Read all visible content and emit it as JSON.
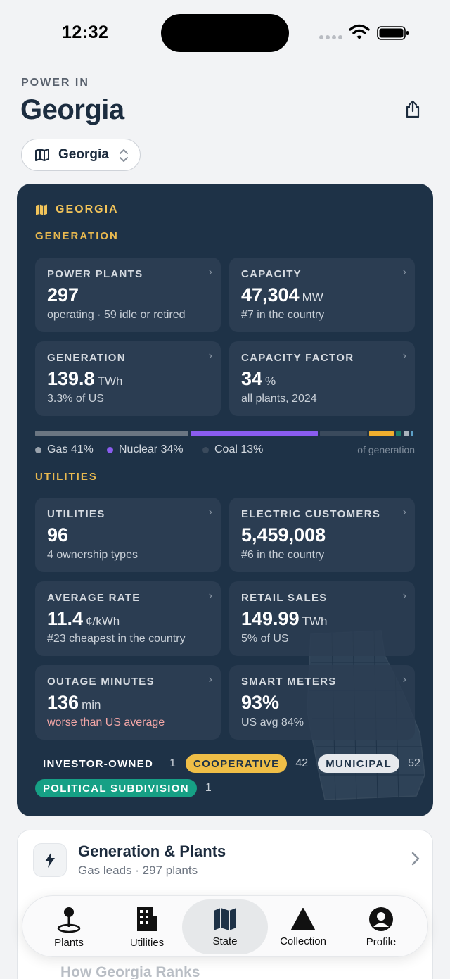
{
  "status_bar": {
    "time": "12:32"
  },
  "header": {
    "eyebrow": "POWER IN",
    "title": "Georgia",
    "picker_value": "Georgia"
  },
  "card": {
    "state_label": "GEORGIA",
    "generation_label": "GENERATION",
    "utilities_label": "UTILITIES",
    "tiles": {
      "power_plants": {
        "label": "POWER PLANTS",
        "value": "297",
        "unit": "",
        "sub": "operating · 59 idle or retired"
      },
      "capacity": {
        "label": "CAPACITY",
        "value": "47,304",
        "unit": "MW",
        "sub": "#7 in the country"
      },
      "generation": {
        "label": "GENERATION",
        "value": "139.8",
        "unit": "TWh",
        "sub": "3.3% of US"
      },
      "capacity_factor": {
        "label": "CAPACITY FACTOR",
        "value": "34",
        "unit": "%",
        "sub": "all plants, 2024"
      },
      "utilities": {
        "label": "UTILITIES",
        "value": "96",
        "unit": "",
        "sub": "4 ownership types"
      },
      "customers": {
        "label": "ELECTRIC CUSTOMERS",
        "value": "5,459,008",
        "unit": "",
        "sub": "#6 in the country"
      },
      "average_rate": {
        "label": "AVERAGE RATE",
        "value": "11.4",
        "unit": "¢/kWh",
        "sub": "#23 cheapest in the country"
      },
      "retail_sales": {
        "label": "RETAIL SALES",
        "value": "149.99",
        "unit": "TWh",
        "sub": "5% of US"
      },
      "outage": {
        "label": "OUTAGE MINUTES",
        "value": "136",
        "unit": "min",
        "sub": "worse than US average"
      },
      "smart_meters": {
        "label": "SMART METERS",
        "value": "93%",
        "unit": "",
        "sub": "US avg 84%"
      }
    },
    "mix": {
      "segments": [
        {
          "name": "Gas",
          "share": 0.41,
          "color": "#6b7682"
        },
        {
          "name": "Nuclear",
          "share": 0.34,
          "color": "#8a5cf0"
        },
        {
          "name": "Coal",
          "share": 0.13,
          "color": "#3a4a5c"
        },
        {
          "name": "Other1",
          "share": 0.07,
          "color": "#efae2e"
        },
        {
          "name": "Other2",
          "share": 0.02,
          "color": "#1c7f6c"
        },
        {
          "name": "Other3",
          "share": 0.02,
          "color": "#a9b3bd"
        },
        {
          "name": "Other4",
          "share": 0.01,
          "color": "#5da0c7"
        }
      ],
      "legend": {
        "gas": "Gas 41%",
        "nuclear": "Nuclear 34%",
        "coal": "Coal 13%",
        "caption": "of generation"
      }
    },
    "ownership": [
      {
        "label": "INVESTOR-OWNED",
        "count": "1"
      },
      {
        "label": "COOPERATIVE",
        "count": "42"
      },
      {
        "label": "MUNICIPAL",
        "count": "52"
      },
      {
        "label": "POLITICAL SUBDIVISION",
        "count": "1"
      }
    ],
    "colors": {
      "accent_gold": "#f2c45a",
      "cooperative": "#efbe47",
      "political": "#16a085",
      "municipal": "#e6e9ed"
    }
  },
  "list": {
    "row1": {
      "title": "Generation & Plants",
      "sub": "Gas leads · 297 plants",
      "icon": "bolt-icon"
    },
    "faded_row": "How Georgia Ranks"
  },
  "tabs": [
    {
      "label": "Plants",
      "icon": "plant-pin-icon"
    },
    {
      "label": "Utilities",
      "icon": "building-icon"
    },
    {
      "label": "State",
      "icon": "map-icon",
      "active": true
    },
    {
      "label": "Collection",
      "icon": "triangle-icon"
    },
    {
      "label": "Profile",
      "icon": "person-icon"
    }
  ]
}
